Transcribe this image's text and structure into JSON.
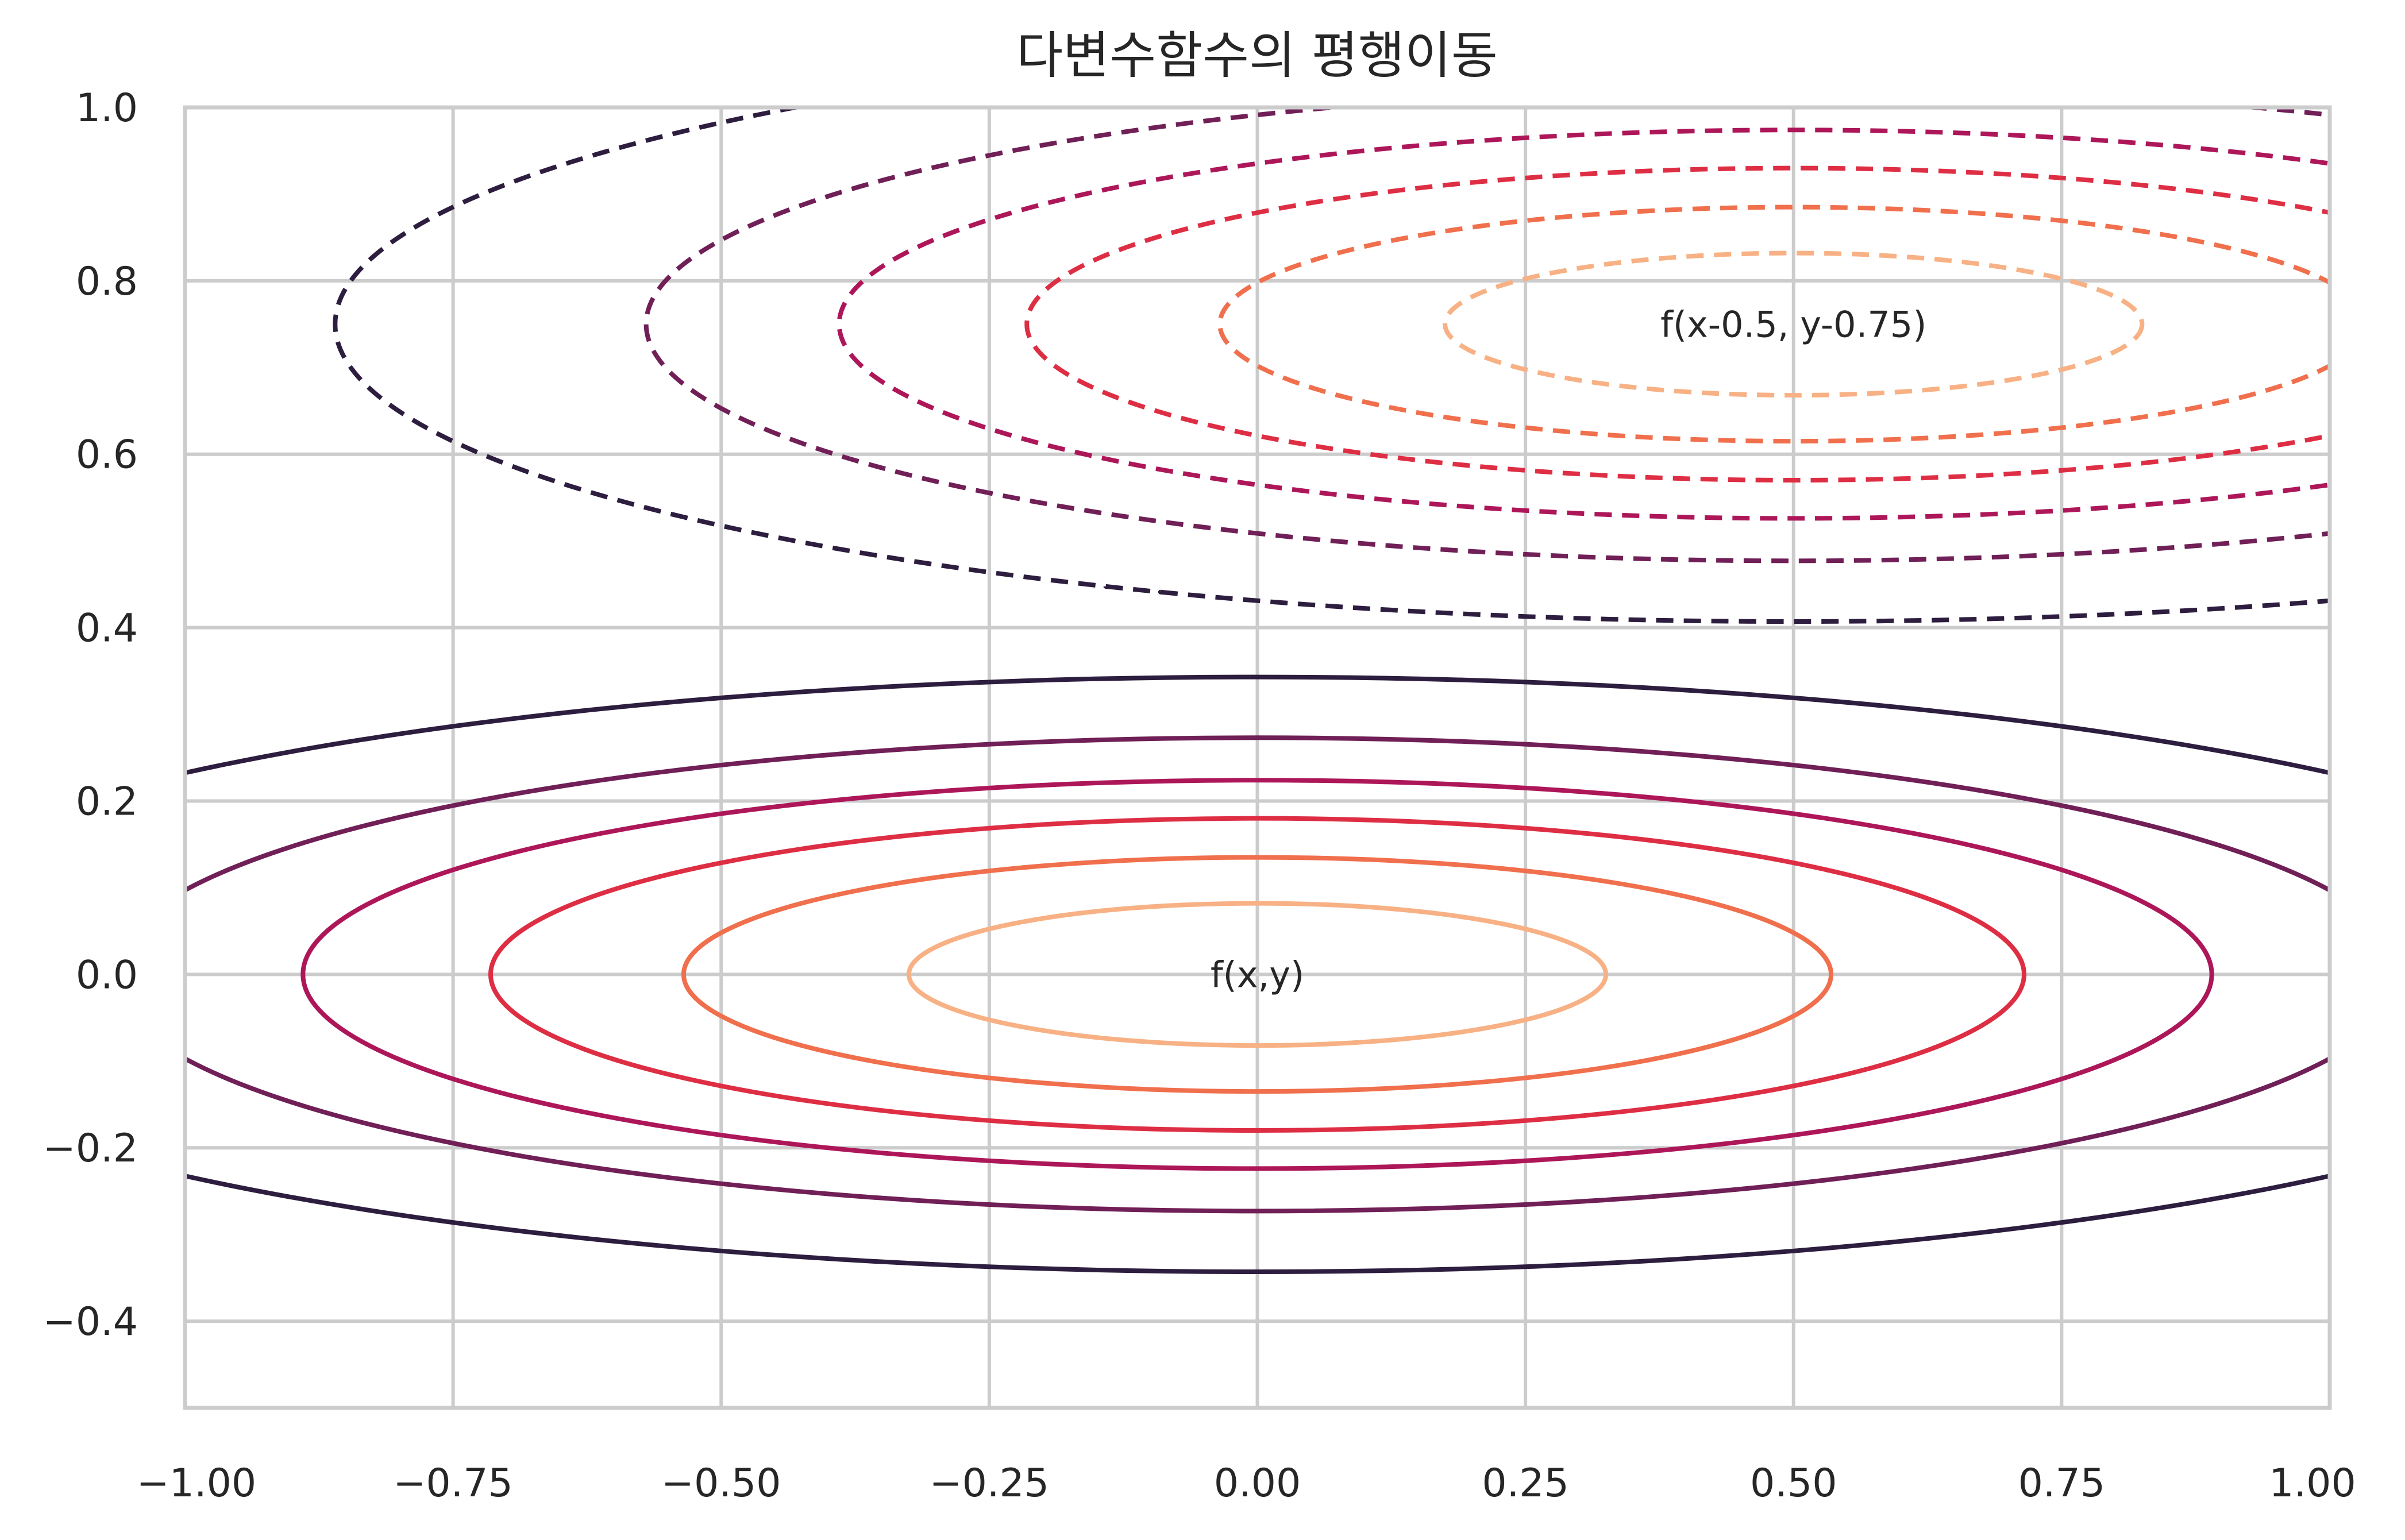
{
  "chart_data": {
    "type": "contour",
    "title": "다변수함수의 평행이동",
    "xlabel": "",
    "ylabel": "",
    "xlim": [
      -1.0,
      1.0
    ],
    "ylim": [
      -0.5,
      1.0
    ],
    "grid": true,
    "x_ticks": [
      "−1.00",
      "−0.75",
      "−0.50",
      "−0.25",
      "0.00",
      "0.25",
      "0.50",
      "0.75",
      "1.00"
    ],
    "x_tick_values": [
      -1.0,
      -0.75,
      -0.5,
      -0.25,
      0.0,
      0.25,
      0.5,
      0.75,
      1.0
    ],
    "y_ticks": [
      "−0.4",
      "−0.2",
      "0.0",
      "0.2",
      "0.4",
      "0.6",
      "0.8",
      "1.0"
    ],
    "y_tick_values": [
      -0.4,
      -0.2,
      0.0,
      0.2,
      0.4,
      0.6,
      0.8,
      1.0
    ],
    "level_colors": [
      "#f7b184",
      "#f06f4d",
      "#de2e44",
      "#ad1759",
      "#701f57",
      "#2d1d3f"
    ],
    "series": [
      {
        "label": "f(x,y)",
        "center": [
          0.0,
          0.0
        ],
        "style": "solid",
        "contours": [
          {
            "semi_x": 0.325,
            "semi_y": 0.082
          },
          {
            "semi_x": 0.535,
            "semi_y": 0.135
          },
          {
            "semi_x": 0.715,
            "semi_y": 0.18
          },
          {
            "semi_x": 0.89,
            "semi_y": 0.224
          },
          {
            "semi_x": 1.07,
            "semi_y": 0.273
          },
          {
            "semi_x": 1.36,
            "semi_y": 0.343
          }
        ]
      },
      {
        "label": "f(x-0.5, y-0.75)",
        "center": [
          0.5,
          0.75
        ],
        "style": "dashed",
        "contours": [
          {
            "semi_x": 0.325,
            "semi_y": 0.082
          },
          {
            "semi_x": 0.535,
            "semi_y": 0.135
          },
          {
            "semi_x": 0.715,
            "semi_y": 0.18
          },
          {
            "semi_x": 0.89,
            "semi_y": 0.224
          },
          {
            "semi_x": 1.07,
            "semi_y": 0.273
          },
          {
            "semi_x": 1.36,
            "semi_y": 0.343
          }
        ]
      }
    ]
  }
}
